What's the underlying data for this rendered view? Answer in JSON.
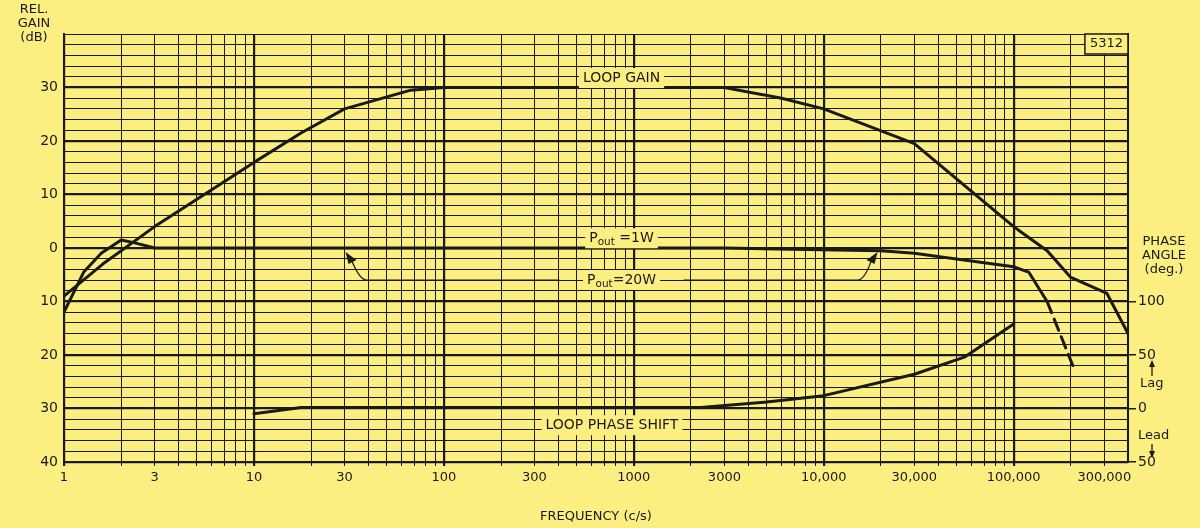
{
  "chart_data": {
    "type": "line",
    "xlabel": "FREQUENCY (c/s)",
    "ylabel": "REL. GAIN (dB)",
    "y2label": "PHASE ANGLE (deg.)",
    "log": "x",
    "grid": true,
    "marker": "none",
    "line_style": "solid",
    "xlim": [
      1,
      400000
    ],
    "xticks": [
      1,
      {
        "value": 2,
        "label": null
      },
      3,
      {
        "value": 4,
        "label": null
      },
      {
        "value": 5,
        "label": null
      },
      {
        "value": 6,
        "label": null
      },
      {
        "value": 7,
        "label": null
      },
      {
        "value": 8,
        "label": null
      },
      {
        "value": 9,
        "label": null
      },
      10,
      {
        "value": 20,
        "label": null
      },
      30,
      {
        "value": 40,
        "label": null
      },
      {
        "value": 50,
        "label": null
      },
      {
        "value": 60,
        "label": null
      },
      {
        "value": 70,
        "label": null
      },
      {
        "value": 80,
        "label": null
      },
      {
        "value": 90,
        "label": null
      },
      100,
      {
        "value": 200,
        "label": null
      },
      300,
      {
        "value": 400,
        "label": null
      },
      {
        "value": 500,
        "label": null
      },
      {
        "value": 600,
        "label": null
      },
      {
        "value": 700,
        "label": null
      },
      {
        "value": 800,
        "label": null
      },
      {
        "value": 900,
        "label": null
      },
      1000,
      {
        "value": 2000,
        "label": null
      },
      3000,
      {
        "value": 4000,
        "label": null
      },
      {
        "value": 5000,
        "label": null
      },
      {
        "value": 6000,
        "label": null
      },
      {
        "value": 7000,
        "label": null
      },
      {
        "value": 8000,
        "label": null
      },
      {
        "value": 9000,
        "label": null
      },
      {
        "value": 10000,
        "label": "10,000"
      },
      {
        "value": 20000,
        "label": null
      },
      {
        "value": 30000,
        "label": "30,000"
      },
      {
        "value": 40000,
        "label": null
      },
      {
        "value": 50000,
        "label": null
      },
      {
        "value": 60000,
        "label": null
      },
      {
        "value": 70000,
        "label": null
      },
      {
        "value": 80000,
        "label": null
      },
      {
        "value": 90000,
        "label": null
      },
      {
        "value": 100000,
        "label": "100,000"
      },
      {
        "value": 200000,
        "label": null
      },
      {
        "value": 300000,
        "label": "300,000"
      }
    ],
    "ylim": [
      -40,
      40
    ],
    "yticks": [
      {
        "value": -40,
        "label": "40"
      },
      {
        "value": -38,
        "label": null
      },
      {
        "value": -36,
        "label": null
      },
      {
        "value": -34,
        "label": null
      },
      {
        "value": -32,
        "label": null
      },
      {
        "value": -30,
        "label": "30"
      },
      {
        "value": -28,
        "label": null
      },
      {
        "value": -26,
        "label": null
      },
      {
        "value": -24,
        "label": null
      },
      {
        "value": -22,
        "label": null
      },
      {
        "value": -20,
        "label": "20"
      },
      {
        "value": -18,
        "label": null
      },
      {
        "value": -16,
        "label": null
      },
      {
        "value": -14,
        "label": null
      },
      {
        "value": -12,
        "label": null
      },
      {
        "value": -10,
        "label": "10"
      },
      {
        "value": -8,
        "label": null
      },
      {
        "value": -6,
        "label": null
      },
      {
        "value": -4,
        "label": null
      },
      {
        "value": -2,
        "label": null
      },
      0,
      {
        "value": 2,
        "label": null
      },
      {
        "value": 4,
        "label": null
      },
      {
        "value": 6,
        "label": null
      },
      {
        "value": 8,
        "label": null
      },
      10,
      {
        "value": 12,
        "label": null
      },
      {
        "value": 14,
        "label": null
      },
      {
        "value": 16,
        "label": null
      },
      {
        "value": 18,
        "label": null
      },
      20,
      {
        "value": 22,
        "label": null
      },
      {
        "value": 24,
        "label": null
      },
      {
        "value": 26,
        "label": null
      },
      {
        "value": 28,
        "label": null
      },
      30,
      {
        "value": 32,
        "label": null
      },
      {
        "value": 34,
        "label": null
      },
      {
        "value": 36,
        "label": null
      },
      {
        "value": 38,
        "label": null
      },
      {
        "value": 40,
        "label": null
      }
    ],
    "y2lim": [
      -50,
      350
    ],
    "y2ticks": [
      100,
      50,
      0,
      {
        "value": -50,
        "label": "50"
      }
    ],
    "series": [
      {
        "color": "#1a1a1a",
        "x": [
          1,
          1.6,
          3,
          10,
          17.7,
          30,
          67,
          100,
          300,
          1000,
          3000,
          6000,
          10000,
          30000,
          100000,
          150000,
          200000,
          310000,
          400000
        ],
        "values": [
          -9,
          -3,
          4,
          16,
          21.5,
          26,
          29.5,
          30,
          30,
          30,
          30,
          28,
          26,
          19.5,
          4,
          -0.5,
          -5.5,
          -8.5,
          -16
        ]
      },
      {
        "color": "#1a1a1a",
        "x": [
          1,
          1.27,
          1.57,
          2,
          2.33,
          3,
          100,
          3000,
          20000,
          30000,
          100000,
          120000,
          150000
        ],
        "values": [
          -12,
          -4.5,
          -1,
          1.5,
          1,
          0,
          0,
          0,
          -0.5,
          -1,
          -3.5,
          -4.5,
          -10
        ]
      },
      {
        "color": "#1a1a1a",
        "line_style": "dashed",
        "x": [
          150000,
          205000
        ],
        "values": [
          -10,
          -22
        ]
      },
      {
        "color": "#1a1a1a",
        "axis": "y2",
        "x": [
          10,
          17.7,
          100,
          1000,
          2250,
          5000,
          10000,
          30000,
          55000,
          100000
        ],
        "values": [
          -5,
          1,
          1,
          1,
          1,
          6,
          12,
          32,
          48,
          79
        ]
      }
    ],
    "annotations": [
      "5312",
      "Lag",
      "Lead",
      "LOOP GAIN",
      "P$_{out}$ =1W",
      "P$_{out}$=20W",
      "LOOP PHASE SHIFT"
    ]
  }
}
